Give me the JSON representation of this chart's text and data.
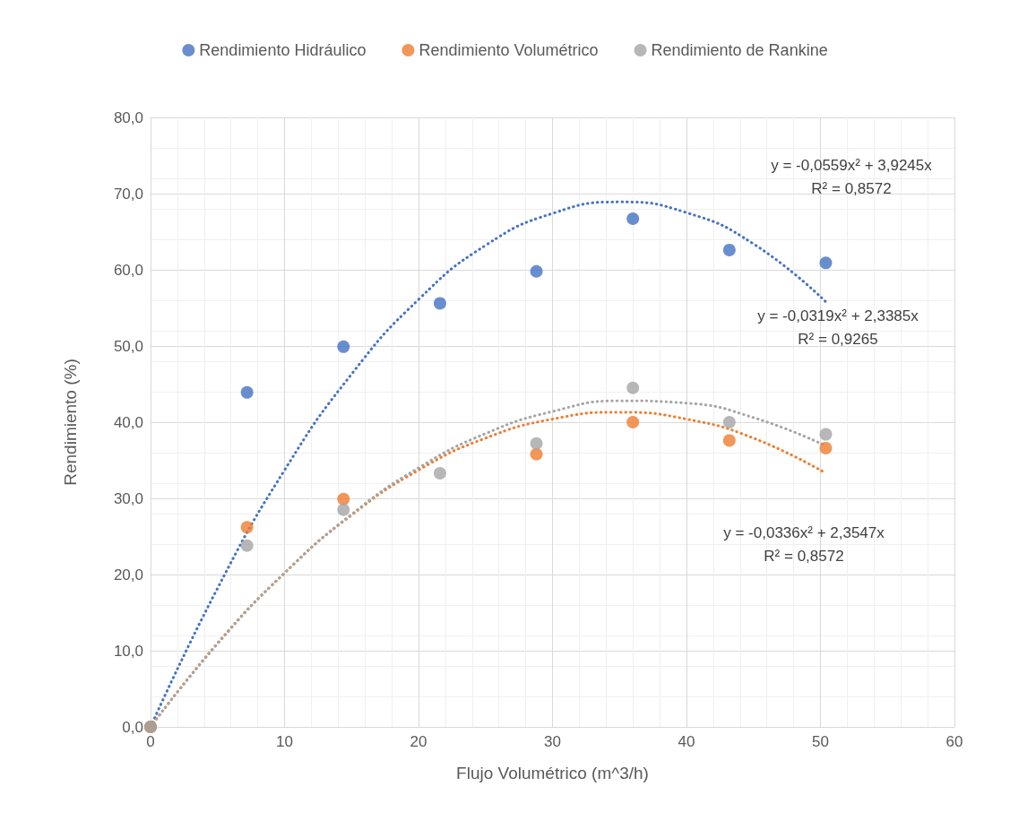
{
  "chart_data": {
    "type": "scatter",
    "xlabel": "Flujo Volumétrico (m^3/h)",
    "ylabel": "Rendimiento (%)",
    "xlim": [
      0,
      60
    ],
    "xticks": [
      0,
      10,
      20,
      30,
      40,
      50,
      60
    ],
    "ylim": [
      0,
      80
    ],
    "yticks": [
      {
        "value": 0,
        "label": "0,0"
      },
      {
        "value": 10,
        "label": "10,0"
      },
      {
        "value": 20,
        "label": "20,0"
      },
      {
        "value": 30,
        "label": "30,0"
      },
      {
        "value": 40,
        "label": "40,0"
      },
      {
        "value": 50,
        "label": "50,0"
      },
      {
        "value": 60,
        "label": "60,0"
      },
      {
        "value": 70,
        "label": "70,0"
      },
      {
        "value": 80,
        "label": "80,0"
      }
    ],
    "grid": true,
    "legend": "top",
    "x": [
      0,
      7.2,
      14.4,
      21.6,
      28.8,
      36,
      43.2,
      50.4
    ],
    "series": [
      {
        "name": "Rendimiento Hidráulico",
        "marker": "circle",
        "color": "#4472c4",
        "values": [
          0,
          43.9,
          49.9,
          55.6,
          59.8,
          66.7,
          62.6,
          60.9
        ]
      },
      {
        "name": "Rendimiento Volumétrico",
        "marker": "circle",
        "color": "#ed7d31",
        "values": [
          0,
          26.2,
          29.9,
          null,
          35.8,
          40.0,
          37.6,
          36.6
        ]
      },
      {
        "name": "Rendimiento de Rankine",
        "marker": "circle",
        "color": "#a5a5a5",
        "values": [
          0,
          23.8,
          28.5,
          33.3,
          37.2,
          44.5,
          40.0,
          38.4
        ]
      },
      {
        "type": "line",
        "marker": "none",
        "line_style": "dotted",
        "color": "#4472c4",
        "x": [
          0,
          5,
          10,
          15,
          20,
          25,
          30,
          35,
          40,
          45,
          50.4
        ],
        "values": [
          0,
          18.2,
          33.7,
          46.3,
          56.1,
          63.2,
          67.4,
          68.9,
          67.5,
          63.4,
          55.8
        ]
      },
      {
        "type": "line",
        "marker": "none",
        "line_style": "dotted",
        "color": "#ed7d31",
        "x": [
          0,
          5,
          10,
          15,
          20,
          25,
          30,
          35,
          40,
          45,
          50.4
        ],
        "values": [
          0,
          11.0,
          20.2,
          27.8,
          33.7,
          37.9,
          40.4,
          41.3,
          40.4,
          37.9,
          33.3
        ]
      },
      {
        "type": "line",
        "marker": "none",
        "line_style": "dotted",
        "color": "#a5a5a5",
        "x": [
          0,
          5,
          10,
          15,
          20,
          25,
          30,
          35,
          40,
          45,
          50.4
        ],
        "values": [
          0,
          10.9,
          20.2,
          27.9,
          34.0,
          38.5,
          41.4,
          42.8,
          42.5,
          40.6,
          36.9
        ]
      }
    ],
    "annotations": [
      "y = -0,0559x² + 3,9245x\nR² = 0,8572",
      "y = -0,0319x² + 2,3385x\nR² = 0,9265",
      "y = -0,0336x² + 2,3547x\nR² = 0,8572"
    ]
  }
}
